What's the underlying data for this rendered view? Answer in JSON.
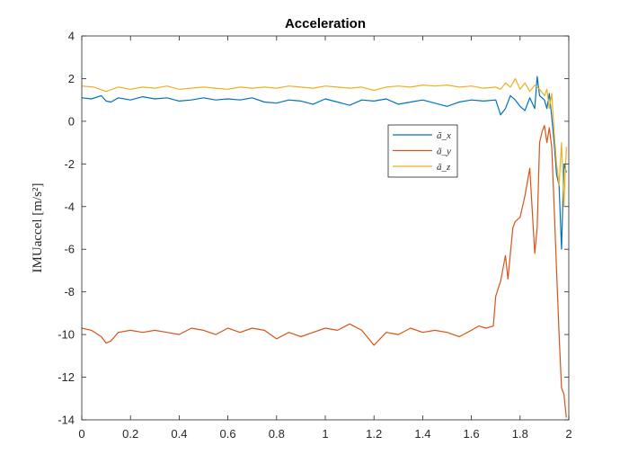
{
  "chart_data": {
    "type": "line",
    "title": "Acceleration",
    "xlabel": "",
    "ylabel": "IMUaccel [m/s²]",
    "xlim": [
      0,
      2
    ],
    "ylim": [
      -14,
      4
    ],
    "xticks": [
      0,
      0.2,
      0.4,
      0.6,
      0.8,
      1,
      1.2,
      1.4,
      1.6,
      1.8,
      2
    ],
    "xtick_labels": [
      "0",
      "0.2",
      "0.4",
      "0.6",
      "0.8",
      "1",
      "1.2",
      "1.4",
      "1.6",
      "1.8",
      "2"
    ],
    "yticks": [
      4,
      2,
      0,
      -2,
      -4,
      -6,
      -8,
      -10,
      -12,
      -14
    ],
    "ytick_labels": [
      "4",
      "2",
      "0",
      "-2",
      "-4",
      "-6",
      "-8",
      "-10",
      "-12",
      "-14"
    ],
    "grid": false,
    "legend_position": "upper-right-center",
    "series": [
      {
        "name": "ã_x",
        "color": "#0072BD",
        "x": [
          0,
          0.04,
          0.08,
          0.1,
          0.12,
          0.15,
          0.2,
          0.25,
          0.3,
          0.35,
          0.4,
          0.45,
          0.5,
          0.55,
          0.6,
          0.65,
          0.7,
          0.75,
          0.8,
          0.85,
          0.9,
          0.95,
          1.0,
          1.05,
          1.1,
          1.15,
          1.2,
          1.25,
          1.3,
          1.35,
          1.4,
          1.45,
          1.5,
          1.55,
          1.6,
          1.65,
          1.7,
          1.72,
          1.74,
          1.76,
          1.78,
          1.8,
          1.82,
          1.84,
          1.86,
          1.87,
          1.88,
          1.9,
          1.91,
          1.92,
          1.93,
          1.94,
          1.95,
          1.96,
          1.97,
          1.98,
          1.99
        ],
        "y": [
          1.1,
          1.05,
          1.2,
          0.95,
          0.9,
          1.1,
          1.0,
          1.15,
          1.05,
          1.1,
          0.95,
          1.0,
          1.1,
          1.0,
          1.05,
          1.0,
          1.1,
          0.9,
          0.85,
          1.0,
          0.95,
          0.8,
          1.05,
          0.9,
          0.75,
          1.0,
          0.95,
          1.05,
          0.8,
          0.9,
          1.0,
          0.85,
          0.7,
          0.9,
          1.0,
          0.95,
          1.0,
          0.3,
          0.6,
          1.2,
          1.0,
          0.7,
          0.5,
          1.1,
          0.6,
          2.1,
          1.2,
          1.0,
          0.6,
          1.3,
          0.2,
          -1.0,
          -2.5,
          -3.0,
          -6.0,
          -2.0,
          -2.4
        ]
      },
      {
        "name": "ã_y",
        "color": "#D95319",
        "x": [
          0,
          0.04,
          0.08,
          0.1,
          0.12,
          0.15,
          0.2,
          0.25,
          0.3,
          0.35,
          0.4,
          0.45,
          0.5,
          0.55,
          0.6,
          0.65,
          0.7,
          0.75,
          0.8,
          0.85,
          0.9,
          0.95,
          1.0,
          1.05,
          1.1,
          1.15,
          1.2,
          1.25,
          1.3,
          1.35,
          1.4,
          1.45,
          1.5,
          1.55,
          1.6,
          1.63,
          1.66,
          1.69,
          1.7,
          1.72,
          1.74,
          1.75,
          1.77,
          1.78,
          1.8,
          1.82,
          1.84,
          1.86,
          1.87,
          1.88,
          1.89,
          1.9,
          1.91,
          1.92,
          1.93,
          1.94,
          1.95,
          1.96,
          1.97,
          1.98,
          1.99
        ],
        "y": [
          -9.7,
          -9.8,
          -10.1,
          -10.4,
          -10.3,
          -9.9,
          -9.8,
          -9.9,
          -9.8,
          -9.9,
          -10.0,
          -9.7,
          -9.8,
          -10.0,
          -9.7,
          -9.9,
          -9.7,
          -9.8,
          -10.2,
          -9.9,
          -10.1,
          -9.9,
          -9.7,
          -9.8,
          -9.5,
          -9.8,
          -10.5,
          -9.9,
          -10.0,
          -9.7,
          -9.9,
          -9.8,
          -9.9,
          -10.1,
          -9.8,
          -9.6,
          -9.7,
          -9.6,
          -8.2,
          -7.5,
          -6.3,
          -7.4,
          -5.0,
          -4.7,
          -4.5,
          -3.5,
          -2.2,
          -6.2,
          -5.0,
          -1.0,
          -0.5,
          -0.2,
          -1.0,
          -0.3,
          -1.2,
          -4.0,
          -7.0,
          -10.0,
          -12.5,
          -12.8,
          -13.9
        ]
      },
      {
        "name": "ã_z",
        "color": "#EDB120",
        "x": [
          0,
          0.05,
          0.1,
          0.15,
          0.2,
          0.25,
          0.3,
          0.35,
          0.4,
          0.45,
          0.5,
          0.55,
          0.6,
          0.65,
          0.7,
          0.75,
          0.8,
          0.85,
          0.9,
          0.95,
          1.0,
          1.05,
          1.1,
          1.15,
          1.2,
          1.25,
          1.3,
          1.35,
          1.4,
          1.45,
          1.5,
          1.55,
          1.6,
          1.65,
          1.7,
          1.72,
          1.74,
          1.76,
          1.78,
          1.8,
          1.82,
          1.84,
          1.86,
          1.88,
          1.9,
          1.91,
          1.92,
          1.93,
          1.94,
          1.95,
          1.96,
          1.97,
          1.98,
          1.99
        ],
        "y": [
          1.65,
          1.6,
          1.4,
          1.6,
          1.5,
          1.6,
          1.55,
          1.65,
          1.5,
          1.55,
          1.6,
          1.55,
          1.5,
          1.6,
          1.55,
          1.6,
          1.55,
          1.65,
          1.6,
          1.55,
          1.65,
          1.6,
          1.55,
          1.6,
          1.45,
          1.6,
          1.65,
          1.6,
          1.7,
          1.65,
          1.7,
          1.6,
          1.65,
          1.55,
          1.6,
          1.5,
          1.8,
          1.6,
          2.0,
          1.5,
          1.8,
          1.4,
          1.7,
          1.5,
          1.2,
          1.5,
          0.6,
          1.3,
          -0.5,
          -2.0,
          -3.0,
          -1.0,
          -4.0,
          -1.2
        ]
      }
    ]
  }
}
